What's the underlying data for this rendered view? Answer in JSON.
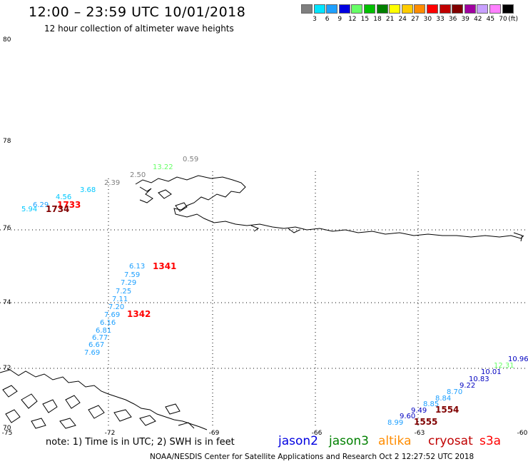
{
  "header": {
    "title": "12:00 – 23:59 UTC 10/01/2018",
    "subtitle": "12 hour collection of altimeter wave heights"
  },
  "colorbar": {
    "unit": "(ft)",
    "levels": [
      {
        "label": "3",
        "color": "#7f7f7f"
      },
      {
        "label": "6",
        "color": "#00e5ff"
      },
      {
        "label": "9",
        "color": "#1ea0ff"
      },
      {
        "label": "12",
        "color": "#0000e0"
      },
      {
        "label": "15",
        "color": "#66ff66"
      },
      {
        "label": "18",
        "color": "#00c000"
      },
      {
        "label": "21",
        "color": "#008000"
      },
      {
        "label": "24",
        "color": "#ffff00"
      },
      {
        "label": "27",
        "color": "#ffcc00"
      },
      {
        "label": "30",
        "color": "#ff8c00"
      },
      {
        "label": "33",
        "color": "#ff0000"
      },
      {
        "label": "36",
        "color": "#c00000"
      },
      {
        "label": "39",
        "color": "#800000"
      },
      {
        "label": "42",
        "color": "#a000a0"
      },
      {
        "label": "45",
        "color": "#c8a0ff"
      },
      {
        "label": "70",
        "color": "#ff80ff"
      },
      {
        "label": "",
        "color": "#000000"
      }
    ]
  },
  "map": {
    "lat_labels": [
      "80",
      "78",
      "76",
      "74",
      "72",
      "70"
    ],
    "lon_labels": [
      "-75",
      "-72",
      "-69",
      "-66",
      "-63",
      "-60"
    ],
    "points": [
      {
        "label": "0.59",
        "color": "#7f7f7f"
      },
      {
        "label": "13.22",
        "color": "#66ff66"
      },
      {
        "label": "2.50",
        "color": "#7f7f7f"
      },
      {
        "label": "2.39",
        "color": "#7f7f7f"
      },
      {
        "label": "3.68",
        "color": "#00c8ff"
      },
      {
        "label": "4.56",
        "color": "#00c8ff"
      },
      {
        "label": "6.29",
        "color": "#1ea0ff"
      },
      {
        "label": "5.94",
        "color": "#00c8ff"
      },
      {
        "label": "6.13",
        "color": "#1ea0ff"
      },
      {
        "label": "7.59",
        "color": "#1ea0ff"
      },
      {
        "label": "7.29",
        "color": "#1ea0ff"
      },
      {
        "label": "7.25",
        "color": "#1ea0ff"
      },
      {
        "label": "7.11",
        "color": "#1ea0ff"
      },
      {
        "label": "7.20",
        "color": "#1ea0ff"
      },
      {
        "label": "7.69",
        "color": "#1ea0ff"
      },
      {
        "label": "6.16",
        "color": "#1ea0ff"
      },
      {
        "label": "6.81",
        "color": "#1ea0ff"
      },
      {
        "label": "6.77",
        "color": "#1ea0ff"
      },
      {
        "label": "6.67",
        "color": "#1ea0ff"
      },
      {
        "label": "7.69",
        "color": "#1ea0ff"
      },
      {
        "label": "10.96",
        "color": "#0000c0"
      },
      {
        "label": "12.31",
        "color": "#66ff66"
      },
      {
        "label": "10.01",
        "color": "#0000c0"
      },
      {
        "label": "10.83",
        "color": "#0000c0"
      },
      {
        "label": "9.22",
        "color": "#0000c0"
      },
      {
        "label": "8.70",
        "color": "#1ea0ff"
      },
      {
        "label": "8.84",
        "color": "#1ea0ff"
      },
      {
        "label": "8.85",
        "color": "#1ea0ff"
      },
      {
        "label": "9.49",
        "color": "#0000c0"
      },
      {
        "label": "9.60",
        "color": "#0000c0"
      },
      {
        "label": "8.99",
        "color": "#1ea0ff"
      }
    ],
    "cycle_times": [
      {
        "label": "1733",
        "color": "#ff0000"
      },
      {
        "label": "1734",
        "color": "#800000"
      },
      {
        "label": "1341",
        "color": "#ff0000"
      },
      {
        "label": "1342",
        "color": "#ff0000"
      },
      {
        "label": "1554",
        "color": "#800000"
      },
      {
        "label": "1555",
        "color": "#800000"
      }
    ]
  },
  "note": "note: 1) Time is in UTC; 2) SWH is in feet",
  "satellites": [
    {
      "name": "jason2",
      "color": "#0000e0"
    },
    {
      "name": "jason3",
      "color": "#008000"
    },
    {
      "name": "altika",
      "color": "#ff8c00"
    },
    {
      "name": "cryosat",
      "color": "#c00000"
    },
    {
      "name": "s3a",
      "color": "#ff0000"
    }
  ],
  "footer": "NOAA/NESDIS Center for Satellite Applications and Research    Oct  2 12:27:52 UTC 2018"
}
